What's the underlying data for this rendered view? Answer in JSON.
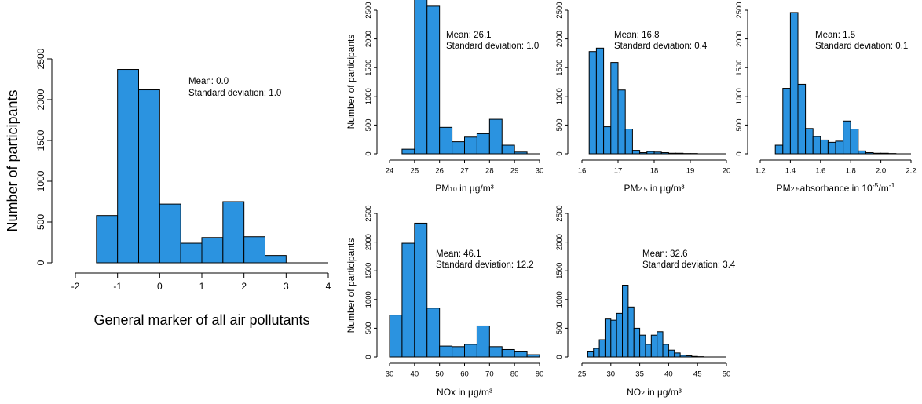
{
  "colors": {
    "bar": "#2b93e0",
    "bar_outline": "#000000",
    "background": "#ffffff"
  },
  "chart_data": [
    {
      "id": "general",
      "type": "bar",
      "xlabel": "General marker of all air pollutants",
      "ylabel": "Number of participants",
      "xlim": [
        -2,
        4
      ],
      "ylim": [
        0,
        2500
      ],
      "xticks": [
        "-2",
        "-1",
        "0",
        "1",
        "2",
        "3",
        "4"
      ],
      "yticks": [
        "0",
        "500",
        "1000",
        "1500",
        "2000",
        "2500"
      ],
      "bin_edges": [
        -1.5,
        -1.0,
        -0.5,
        0.0,
        0.5,
        1.0,
        1.5,
        2.0,
        2.5,
        3.0
      ],
      "values": [
        580,
        2370,
        2120,
        720,
        240,
        310,
        750,
        320,
        90
      ],
      "annotation": [
        "Mean: 0.0",
        "Standard deviation: 1.0"
      ]
    },
    {
      "id": "pm10",
      "type": "bar",
      "xlabel_parts": [
        "PM",
        "10",
        " in µg/m³"
      ],
      "ylabel": "Number of participants",
      "xlim": [
        24,
        30
      ],
      "ylim": [
        0,
        2500
      ],
      "xticks": [
        "24",
        "25",
        "26",
        "27",
        "28",
        "29",
        "30"
      ],
      "yticks": [
        "0",
        "500",
        "1000",
        "1500",
        "2000",
        "2500"
      ],
      "bin_edges": [
        24.5,
        25.0,
        25.5,
        26.0,
        26.5,
        27.0,
        27.5,
        28.0,
        28.5,
        29.0,
        29.5
      ],
      "values": [
        80,
        2720,
        2570,
        460,
        210,
        290,
        350,
        600,
        150,
        30
      ],
      "annotation": [
        "Mean: 26.1",
        "Standard deviation: 1.0"
      ]
    },
    {
      "id": "pm25",
      "type": "bar",
      "xlabel_parts": [
        "PM",
        "2.5",
        " in µg/m³"
      ],
      "ylabel": "",
      "xlim": [
        16,
        20
      ],
      "ylim": [
        0,
        2500
      ],
      "xticks": [
        "16",
        "17",
        "18",
        "19",
        "20"
      ],
      "yticks": [
        "0",
        "500",
        "1000",
        "1500",
        "2000",
        "2500"
      ],
      "bin_edges": [
        16.2,
        16.4,
        16.6,
        16.8,
        17.0,
        17.2,
        17.4,
        17.6,
        17.8,
        18.0,
        18.2,
        18.4,
        18.6,
        18.8,
        19.0,
        19.2
      ],
      "values": [
        1780,
        1840,
        470,
        1590,
        1110,
        430,
        60,
        20,
        40,
        30,
        20,
        10,
        10,
        5,
        5
      ],
      "annotation": [
        "Mean: 16.8",
        "Standard deviation: 0.4"
      ]
    },
    {
      "id": "pm25abs",
      "type": "bar",
      "xlabel_parts": [
        "PM",
        "2.5",
        "absorbance in 10",
        "-5",
        "/m",
        "-1"
      ],
      "ylabel": "",
      "xlim": [
        1.2,
        2.2
      ],
      "ylim": [
        0,
        2500
      ],
      "xticks": [
        "1.2",
        "1.4",
        "1.6",
        "1.8",
        "2.0",
        "2.2"
      ],
      "yticks": [
        "0",
        "500",
        "1000",
        "1500",
        "2000",
        "2500"
      ],
      "bin_edges": [
        1.3,
        1.35,
        1.4,
        1.45,
        1.5,
        1.55,
        1.6,
        1.65,
        1.7,
        1.75,
        1.8,
        1.85,
        1.9,
        1.95,
        2.0,
        2.05,
        2.1
      ],
      "values": [
        150,
        1140,
        2460,
        1210,
        440,
        300,
        240,
        200,
        220,
        570,
        430,
        50,
        20,
        10,
        10,
        5
      ],
      "annotation": [
        "Mean: 1.5",
        "Standard deviation: 0.1"
      ]
    },
    {
      "id": "nox",
      "type": "bar",
      "xlabel_parts": [
        "NOx in µg/m³"
      ],
      "ylabel": "Number of participants",
      "xlim": [
        30,
        90
      ],
      "ylim": [
        0,
        2500
      ],
      "xticks": [
        "30",
        "40",
        "50",
        "60",
        "70",
        "80",
        "90"
      ],
      "yticks": [
        "0",
        "500",
        "1000",
        "1500",
        "2000",
        "2500"
      ],
      "bin_edges": [
        30,
        35,
        40,
        45,
        50,
        55,
        60,
        65,
        70,
        75,
        80,
        85,
        90
      ],
      "values": [
        730,
        1980,
        2330,
        850,
        190,
        180,
        220,
        540,
        180,
        130,
        90,
        40
      ],
      "annotation": [
        "Mean: 46.1",
        "Standard deviation: 12.2"
      ]
    },
    {
      "id": "no2",
      "type": "bar",
      "xlabel_parts": [
        "NO",
        "2",
        " in µg/m³"
      ],
      "ylabel": "",
      "xlim": [
        25,
        50
      ],
      "ylim": [
        0,
        2500
      ],
      "xticks": [
        "25",
        "30",
        "35",
        "40",
        "45",
        "50"
      ],
      "yticks": [
        "0",
        "500",
        "1000",
        "1500",
        "2000",
        "2500"
      ],
      "bin_edges": [
        26,
        27,
        28,
        29,
        30,
        31,
        32,
        33,
        34,
        35,
        36,
        37,
        38,
        39,
        40,
        41,
        42,
        43,
        44,
        45,
        46
      ],
      "values": [
        90,
        150,
        300,
        660,
        640,
        760,
        1250,
        870,
        500,
        380,
        220,
        380,
        440,
        220,
        120,
        70,
        30,
        20,
        10,
        5
      ],
      "annotation": [
        "Mean: 32.6",
        "Standard deviation: 3.4"
      ]
    }
  ]
}
